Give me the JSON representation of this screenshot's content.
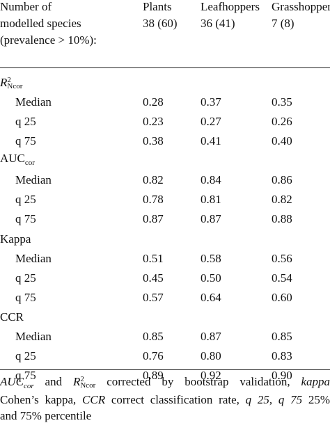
{
  "header": {
    "stub": [
      "Number of",
      "modelled species",
      "(prevalence > 10%):"
    ],
    "columns": [
      {
        "name": "Plants",
        "count": "38 (60)"
      },
      {
        "name": "Leafhoppers",
        "count": "36 (41)"
      },
      {
        "name": "Grasshoppers",
        "count": "7 (8)"
      }
    ]
  },
  "sections": [
    {
      "name": {
        "base": "R",
        "sup": "2",
        "sub": "Ncor"
      },
      "rows": [
        {
          "label": "Median",
          "values": [
            "0.28",
            "0.37",
            "0.35"
          ]
        },
        {
          "label": "q 25",
          "values": [
            "0.23",
            "0.27",
            "0.26"
          ]
        },
        {
          "label": "q 75",
          "values": [
            "0.38",
            "0.41",
            "0.40"
          ]
        }
      ]
    },
    {
      "name": {
        "base": "AUC",
        "sub": "cor"
      },
      "rows": [
        {
          "label": "Median",
          "values": [
            "0.82",
            "0.84",
            "0.86"
          ]
        },
        {
          "label": "q 25",
          "values": [
            "0.78",
            "0.81",
            "0.82"
          ]
        },
        {
          "label": "q 75",
          "values": [
            "0.87",
            "0.87",
            "0.88"
          ]
        }
      ]
    },
    {
      "name": {
        "base": "Kappa"
      },
      "rows": [
        {
          "label": "Median",
          "values": [
            "0.51",
            "0.58",
            "0.56"
          ]
        },
        {
          "label": "q 25",
          "values": [
            "0.45",
            "0.50",
            "0.54"
          ]
        },
        {
          "label": "q 75",
          "values": [
            "0.57",
            "0.64",
            "0.60"
          ]
        }
      ]
    },
    {
      "name": {
        "base": "CCR"
      },
      "rows": [
        {
          "label": "Median",
          "values": [
            "0.85",
            "0.87",
            "0.85"
          ]
        },
        {
          "label": "q 25",
          "values": [
            "0.76",
            "0.80",
            "0.83"
          ]
        },
        {
          "label": "q 75",
          "values": [
            "0.89",
            "0.92",
            "0.90"
          ]
        }
      ]
    }
  ],
  "footnote": {
    "lines": [
      [
        "AUC",
        "cor",
        "and",
        "R",
        "2",
        "Ncor",
        "corrected by bootstrap validation,",
        "kappa"
      ],
      [
        "Cohen’s kappa,",
        "CCR",
        "correct classification rate,",
        "q 25",
        ",",
        "q 75",
        "25%"
      ],
      [
        "and 75% percentile"
      ]
    ]
  }
}
